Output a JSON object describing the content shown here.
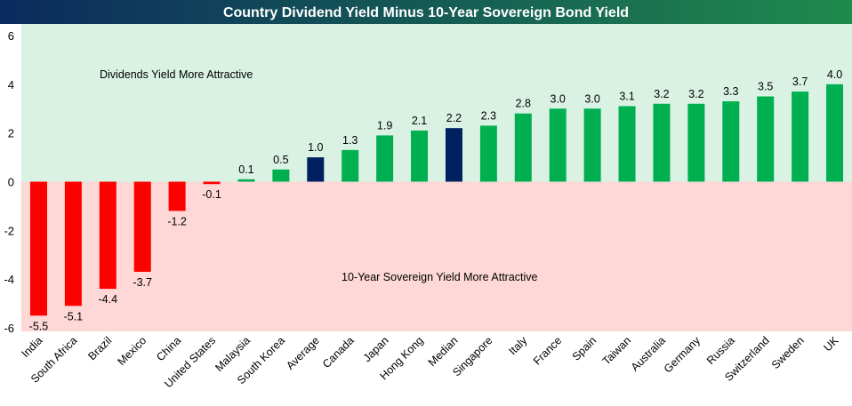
{
  "chart_data": {
    "type": "bar",
    "title": "Country Dividend Yield Minus 10-Year Sovereign Bond Yield",
    "xlabel": "",
    "ylabel": "",
    "ylim": [
      -6,
      6
    ],
    "yticks": [
      6,
      4,
      2,
      0,
      -2,
      -4,
      -6
    ],
    "grid": false,
    "categories": [
      "India",
      "South Africa",
      "Brazil",
      "Mexico",
      "China",
      "United States",
      "Malaysia",
      "South Korea",
      "Average",
      "Canada",
      "Japan",
      "Hong Kong",
      "Median",
      "Singapore",
      "Italy",
      "France",
      "Spain",
      "Taiwan",
      "Australia",
      "Germany",
      "Russia",
      "Switzerland",
      "Sweden",
      "UK"
    ],
    "values": [
      -5.5,
      -5.1,
      -4.4,
      -3.7,
      -1.2,
      -0.1,
      0.1,
      0.5,
      1.0,
      1.3,
      1.9,
      2.1,
      2.2,
      2.3,
      2.8,
      3.0,
      3.0,
      3.1,
      3.2,
      3.2,
      3.3,
      3.5,
      3.7,
      4.0
    ],
    "data_labels": [
      "-5.5",
      "-5.1",
      "-4.4",
      "-3.7",
      "-1.2",
      "-0.1",
      "0.1",
      "0.5",
      "1.0",
      "1.3",
      "1.9",
      "2.1",
      "2.2",
      "2.3",
      "2.8",
      "3.0",
      "3.0",
      "3.1",
      "3.2",
      "3.2",
      "3.3",
      "3.5",
      "3.7",
      "4.0"
    ],
    "highlighted": [
      "Average",
      "Median"
    ],
    "annotations": {
      "positive_region": "Dividends Yield More Attractive",
      "negative_region": "10-Year Sovereign Yield More Attractive"
    }
  },
  "colors": {
    "title_bar_left": "#0b2a5e",
    "title_bar_right": "#1f8a4c",
    "title_text": "#ffffff",
    "positive_bg": "#daf2e4",
    "negative_bg": "#fdd8d6",
    "positive_bar": "#00b050",
    "negative_bar": "#ff0000",
    "highlight_bar": "#002060",
    "text": "#000000"
  }
}
